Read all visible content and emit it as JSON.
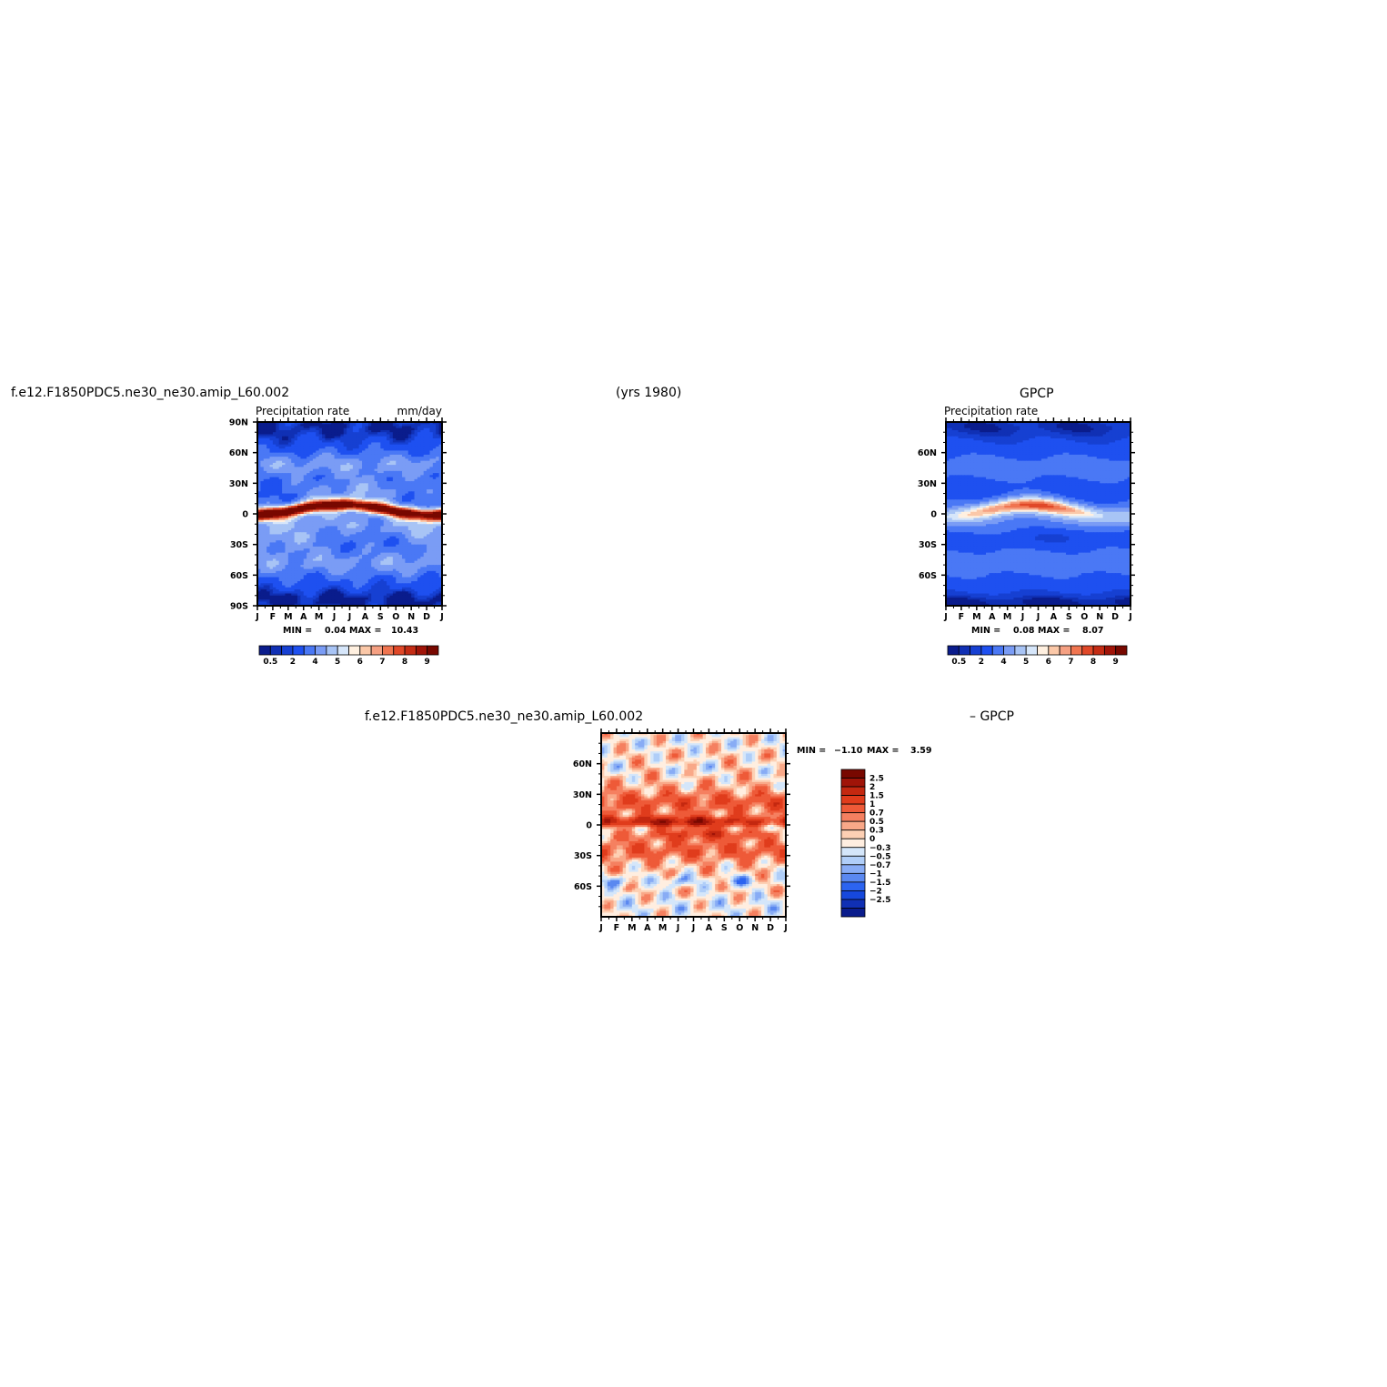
{
  "header": {
    "case_name": "f.e12.F1850PDC5.ne30_ne30.amip_L60.002",
    "years": "(yrs  1980)",
    "obs_name": "GPCP"
  },
  "diff_header": {
    "case_name": "f.e12.F1850PDC5.ne30_ne30.amip_L60.002",
    "obs_part": "–  GPCP"
  },
  "colors": {
    "full_levels": [
      "#0a1c8c",
      "#1030b4",
      "#1640d2",
      "#1e50f0",
      "#4a78f5",
      "#7a9cf5",
      "#a8c4f5",
      "#d6e6fa",
      "#fff0e0",
      "#fbc8a8",
      "#f5a082",
      "#f07550",
      "#e04828",
      "#c42c14",
      "#a01408",
      "#780800"
    ],
    "diff_levels": [
      "#0a1c8c",
      "#1030b4",
      "#1648dc",
      "#2c64f0",
      "#5a88f0",
      "#88acf5",
      "#b0cef8",
      "#d4e6fa",
      "#ffeee0",
      "#fdd0b4",
      "#f9a888",
      "#f58060",
      "#ee5a38",
      "#e03c1c",
      "#c42810",
      "#a01408",
      "#780800"
    ]
  },
  "chart_data": [
    {
      "type": "heatmap",
      "title": "f.e12.F1850PDC5.ne30_ne30.amip_L60.002",
      "subtitle_left": "Precipitation  rate",
      "subtitle_right": "mm/day",
      "x_tick_labels": [
        "J",
        "F",
        "M",
        "A",
        "M",
        "J",
        "J",
        "A",
        "S",
        "O",
        "N",
        "D",
        "J"
      ],
      "y_tick_labels": [
        "90N",
        "60N",
        "30N",
        "0",
        "30S",
        "60S",
        "90S"
      ],
      "y_ticks": [
        90,
        60,
        30,
        0,
        -30,
        -60,
        -90
      ],
      "ylim": [
        -90,
        90
      ],
      "min_label": "MIN =",
      "min_value": "0.04",
      "max_label": "MAX =",
      "max_value": "10.43",
      "colorbar_labels": [
        "0.5",
        "2",
        "4",
        "5",
        "6",
        "7",
        "8",
        "9"
      ],
      "colorbar_bounds": [
        0.2,
        0.5,
        1,
        2,
        3,
        4,
        5,
        5.5,
        6,
        6.5,
        7,
        7.5,
        8,
        8.5,
        9,
        9.5
      ]
    },
    {
      "type": "heatmap",
      "title": "GPCP",
      "subtitle_left": "Precipitation  rate",
      "subtitle_right": "",
      "x_tick_labels": [
        "J",
        "F",
        "M",
        "A",
        "M",
        "J",
        "J",
        "A",
        "S",
        "O",
        "N",
        "D",
        "J"
      ],
      "y_tick_labels": [
        "60N",
        "30N",
        "0",
        "30S",
        "60S"
      ],
      "y_ticks": [
        60,
        30,
        0,
        -30,
        -60
      ],
      "ylim": [
        -90,
        90
      ],
      "min_label": "MIN =",
      "min_value": "0.08",
      "max_label": "MAX =",
      "max_value": "8.07",
      "colorbar_labels": [
        "0.5",
        "2",
        "4",
        "5",
        "6",
        "7",
        "8",
        "9"
      ],
      "colorbar_bounds": [
        0.2,
        0.5,
        1,
        2,
        3,
        4,
        5,
        5.5,
        6,
        6.5,
        7,
        7.5,
        8,
        8.5,
        9,
        9.5
      ]
    },
    {
      "type": "heatmap",
      "title": "f.e12.F1850PDC5.ne30_ne30.amip_L60.002  –  GPCP",
      "x_tick_labels": [
        "J",
        "F",
        "M",
        "A",
        "M",
        "J",
        "J",
        "A",
        "S",
        "O",
        "N",
        "D",
        "J"
      ],
      "y_tick_labels": [
        "60N",
        "30N",
        "0",
        "30S",
        "60S"
      ],
      "y_ticks": [
        60,
        30,
        0,
        -30,
        -60
      ],
      "ylim": [
        -90,
        90
      ],
      "min_label": "MIN =",
      "min_value": "−1.10",
      "max_label": "MAX =",
      "max_value": "3.59",
      "colorbar_labels": [
        "2.5",
        "2",
        "1.5",
        "1",
        "0.7",
        "0.5",
        "0.3",
        "0",
        "−0.3",
        "−0.5",
        "−0.7",
        "−1",
        "−1.5",
        "−2",
        "−2.5"
      ]
    }
  ]
}
